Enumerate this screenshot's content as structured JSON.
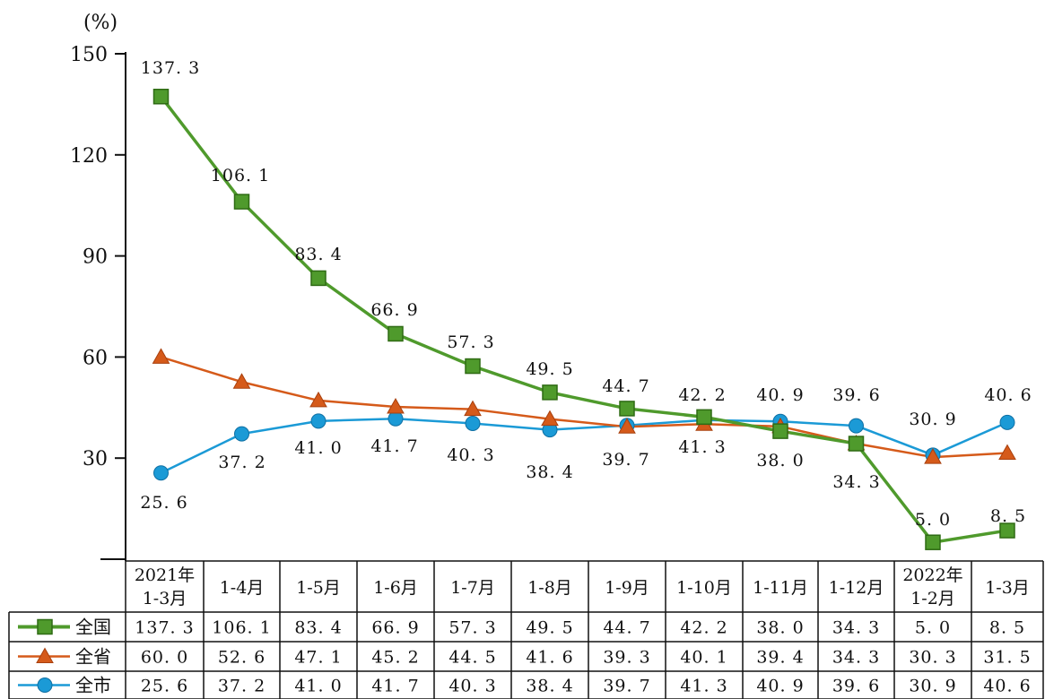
{
  "chart_data": {
    "type": "line",
    "unit": "(%)",
    "ylim": [
      0,
      150
    ],
    "yticks": [
      150,
      120,
      90,
      60,
      30
    ],
    "grid": false,
    "legend_placement": "table-left",
    "categories": [
      [
        "2021年",
        "1-3月"
      ],
      [
        "1-4月"
      ],
      [
        "1-5月"
      ],
      [
        "1-6月"
      ],
      [
        "1-7月"
      ],
      [
        "1-8月"
      ],
      [
        "1-9月"
      ],
      [
        "1-10月"
      ],
      [
        "1-11月"
      ],
      [
        "1-12月"
      ],
      [
        "2022年",
        "1-2月"
      ],
      [
        "1-3月"
      ]
    ],
    "series": [
      {
        "name": "全国",
        "color": "#4f9a2c",
        "marker": "square",
        "values": [
          137.3,
          106.1,
          83.4,
          66.9,
          57.3,
          49.5,
          44.7,
          42.2,
          38.0,
          34.3,
          5.0,
          8.5
        ],
        "table_values": [
          "137. 3",
          "106. 1",
          "83. 4",
          "66. 9",
          "57. 3",
          "49. 5",
          "44. 7",
          "42. 2",
          "38. 0",
          "34. 3",
          "5. 0",
          "8. 5"
        ]
      },
      {
        "name": "全省",
        "color": "#d55a1a",
        "marker": "triangle",
        "values": [
          60.0,
          52.6,
          47.1,
          45.2,
          44.5,
          41.6,
          39.3,
          40.1,
          39.4,
          34.3,
          30.3,
          31.5
        ],
        "table_values": [
          "60. 0",
          "52. 6",
          "47. 1",
          "45. 2",
          "44. 5",
          "41. 6",
          "39. 3",
          "40. 1",
          "39. 4",
          "34. 3",
          "30. 3",
          "31. 5"
        ]
      },
      {
        "name": "全市",
        "color": "#1b9ad6",
        "marker": "circle",
        "values": [
          25.6,
          37.2,
          41.0,
          41.7,
          40.3,
          38.4,
          39.7,
          41.3,
          40.9,
          39.6,
          30.9,
          40.6
        ],
        "table_values": [
          "25. 6",
          "37. 2",
          "41. 0",
          "41. 7",
          "40. 3",
          "38. 4",
          "39. 7",
          "41. 3",
          "40. 9",
          "39. 6",
          "30. 9",
          "40. 6"
        ]
      }
    ],
    "data_labels": [
      "137. 3",
      "106. 1",
      "83. 4",
      "66. 9",
      "57. 3",
      "49. 5",
      "44. 7",
      "42. 2",
      "25. 6",
      "37. 2",
      "41. 0",
      "41. 7",
      "40. 3",
      "38. 4",
      "39. 7",
      "41. 3",
      "40. 9",
      "39. 6",
      "30. 9",
      "40. 6",
      "38. 0",
      "34. 3",
      "5. 0",
      "8. 5"
    ]
  }
}
